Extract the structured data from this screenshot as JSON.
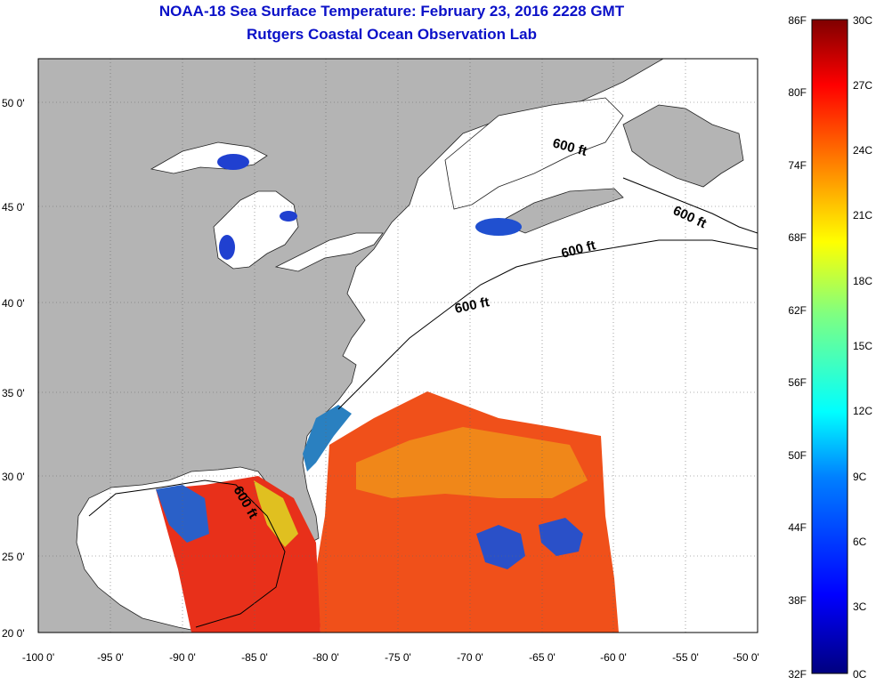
{
  "header": {
    "title": "NOAA-18 Sea Surface Temperature:  February 23, 2016 2228 GMT",
    "subtitle": "Rutgers Coastal Ocean Observation Lab"
  },
  "map": {
    "lat_labels": [
      "50 0'",
      "45 0'",
      "40 0'",
      "35 0'",
      "30 0'",
      "25 0'",
      "20 0'"
    ],
    "lon_labels": [
      "-100 0'",
      "-95 0'",
      "-90 0'",
      "-85 0'",
      "-80 0'",
      "-75 0'",
      "-70 0'",
      "-65 0'",
      "-60 0'",
      "-55 0'",
      "-50 0'"
    ],
    "contour_label": "600 ft",
    "colors": {
      "land": "#b4b4b4",
      "water_nodata": "#ffffff",
      "warm": "#f03010",
      "cool": "#2050d0"
    }
  },
  "colorbar": {
    "fahrenheit": [
      "86F",
      "80F",
      "74F",
      "68F",
      "62F",
      "56F",
      "50F",
      "44F",
      "38F",
      "32F"
    ],
    "celsius": [
      "30C",
      "27C",
      "24C",
      "21C",
      "18C",
      "15C",
      "12C",
      "9C",
      "6C",
      "3C",
      "0C"
    ],
    "stops": [
      "#00007f",
      "#0000ff",
      "#0080ff",
      "#00ffff",
      "#80ff80",
      "#ffff00",
      "#ff8000",
      "#ff0000",
      "#7f0000"
    ]
  }
}
